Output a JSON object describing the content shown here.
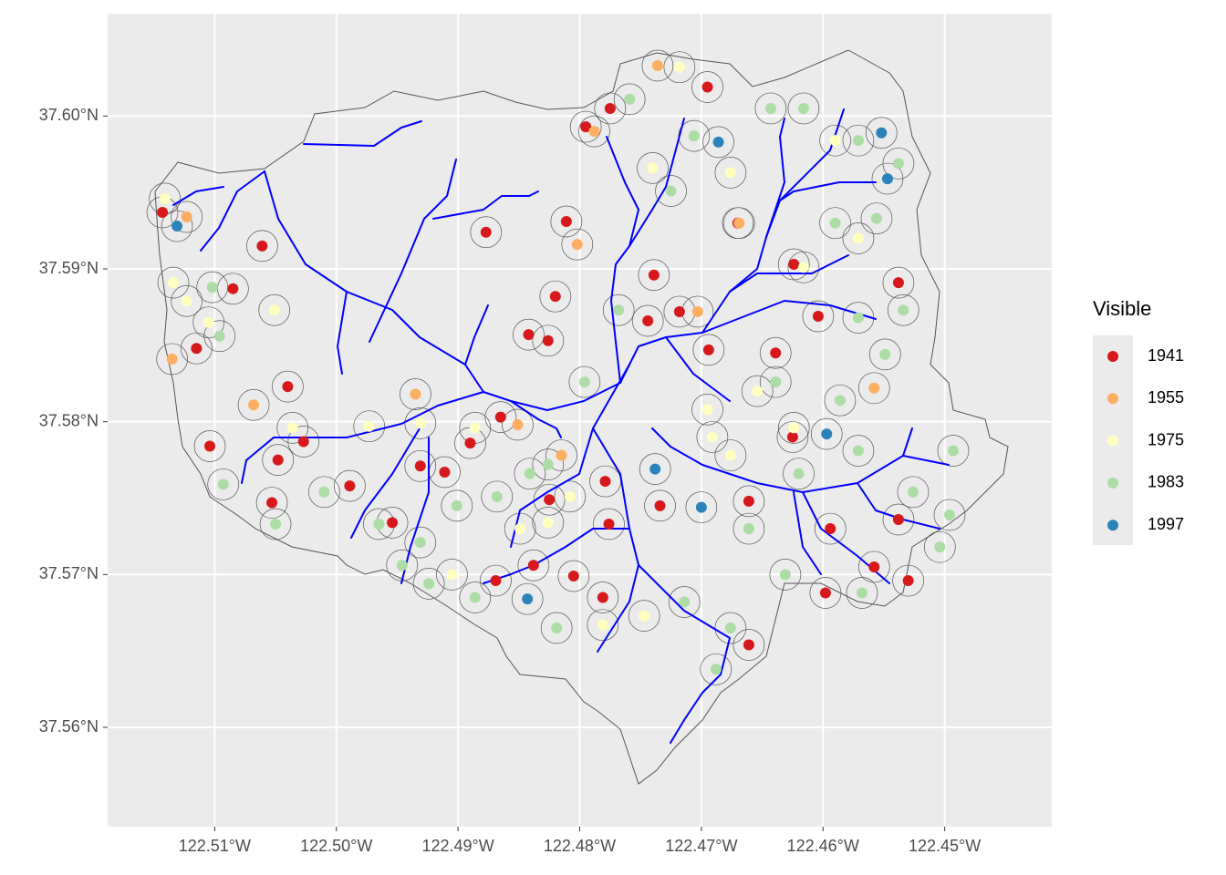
{
  "chart_data": {
    "type": "map",
    "legend_title": "Visible",
    "legend_position": "right",
    "grid": true,
    "xlim": [
      -122.5188,
      -122.4412
    ],
    "ylim": [
      37.5535,
      37.6067
    ],
    "xticks": [
      {
        "value": -122.51,
        "label": "122.51°W"
      },
      {
        "value": -122.5,
        "label": "122.50°W"
      },
      {
        "value": -122.49,
        "label": "122.49°W"
      },
      {
        "value": -122.48,
        "label": "122.48°W"
      },
      {
        "value": -122.47,
        "label": "122.47°W"
      },
      {
        "value": -122.46,
        "label": "122.46°W"
      },
      {
        "value": -122.45,
        "label": "122.45°W"
      }
    ],
    "yticks": [
      {
        "value": 37.56,
        "label": "37.56°N"
      },
      {
        "value": 37.57,
        "label": "37.57°N"
      },
      {
        "value": 37.58,
        "label": "37.58°N"
      },
      {
        "value": 37.59,
        "label": "37.59°N"
      },
      {
        "value": 37.6,
        "label": "37.60°N"
      }
    ],
    "series": [
      {
        "name": "1941",
        "color": "#d7191c",
        "x": [
          -122.5143,
          -122.5115,
          -122.5104,
          -122.5085,
          -122.5061,
          -122.504,
          -122.5027,
          -122.5048,
          -122.5053,
          -122.4989,
          -122.4954,
          -122.4931,
          -122.4911,
          -122.489,
          -122.4865,
          -122.4877,
          -122.4842,
          -122.4826,
          -122.4811,
          -122.4795,
          -122.4775,
          -122.482,
          -122.4739,
          -122.4718,
          -122.4695,
          -122.467,
          -122.4694,
          -122.4624,
          -122.4604,
          -122.4639,
          -122.4538,
          -122.4538,
          -122.453,
          -122.4594,
          -122.4598,
          -122.4661,
          -122.4734,
          -122.4779,
          -122.4776,
          -122.4781,
          -122.4805,
          -122.4869,
          -122.4825,
          -122.4838,
          -122.4661,
          -122.4744,
          -122.4625,
          -122.4558
        ],
        "y": [
          37.5937,
          37.5848,
          37.5784,
          37.5887,
          37.5915,
          37.5823,
          37.5787,
          37.5775,
          37.5747,
          37.5758,
          37.5734,
          37.5771,
          37.5767,
          37.5786,
          37.5803,
          37.5924,
          37.5857,
          37.5853,
          37.5931,
          37.5993,
          37.6005,
          37.5882,
          37.5896,
          37.5872,
          37.6019,
          37.593,
          37.5847,
          37.5903,
          37.5869,
          37.5845,
          37.5891,
          37.5736,
          37.5696,
          37.573,
          37.5688,
          37.5748,
          37.5745,
          37.5761,
          37.5733,
          37.5685,
          37.5699,
          37.5696,
          37.5749,
          37.5706,
          37.5654,
          37.5866,
          37.579,
          37.5705
        ]
      },
      {
        "name": "1955",
        "color": "#fdae61",
        "x": [
          -122.5123,
          -122.5135,
          -122.5068,
          -122.4935,
          -122.4851,
          -122.4788,
          -122.4736,
          -122.4703,
          -122.4558,
          -122.4802,
          -122.4815,
          -122.4669
        ],
        "y": [
          37.5934,
          37.5841,
          37.5811,
          37.5818,
          37.5798,
          37.599,
          37.6033,
          37.5872,
          37.5822,
          37.5916,
          37.5778,
          37.593
        ]
      },
      {
        "name": "1975",
        "color": "#ffffbf",
        "x": [
          -122.5141,
          -122.5134,
          -122.5123,
          -122.5105,
          -122.5051,
          -122.5036,
          -122.4973,
          -122.4931,
          -122.4886,
          -122.4826,
          -122.4808,
          -122.4781,
          -122.4718,
          -122.474,
          -122.4676,
          -122.459,
          -122.4616,
          -122.4691,
          -122.4676,
          -122.4695,
          -122.4654,
          -122.4624,
          -122.4905,
          -122.4849,
          -122.4747,
          -122.4571
        ],
        "y": [
          37.5946,
          37.5891,
          37.5879,
          37.5865,
          37.5873,
          37.5796,
          37.5797,
          37.5799,
          37.5796,
          37.5734,
          37.5751,
          37.5667,
          37.6032,
          37.5966,
          37.5963,
          37.5984,
          37.5901,
          37.579,
          37.5778,
          37.5808,
          37.582,
          37.5796,
          37.57,
          37.573,
          37.5673,
          37.592
        ]
      },
      {
        "name": "1983",
        "color": "#abdda4",
        "x": [
          -122.5102,
          -122.5096,
          -122.5093,
          -122.505,
          -122.501,
          -122.4965,
          -122.4946,
          -122.4901,
          -122.4868,
          -122.4841,
          -122.4826,
          -122.4796,
          -122.4768,
          -122.4759,
          -122.4725,
          -122.4706,
          -122.4643,
          -122.4616,
          -122.4571,
          -122.4538,
          -122.459,
          -122.4556,
          -122.4571,
          -122.4549,
          -122.4534,
          -122.4586,
          -122.4571,
          -122.4526,
          -122.4493,
          -122.4504,
          -122.4496,
          -122.4568,
          -122.4631,
          -122.4676,
          -122.4688,
          -122.4661,
          -122.4714,
          -122.4819,
          -122.4886,
          -122.4924,
          -122.4931,
          -122.462,
          -122.4639
        ],
        "y": [
          37.5888,
          37.5856,
          37.5759,
          37.5733,
          37.5754,
          37.5733,
          37.5706,
          37.5745,
          37.5751,
          37.5766,
          37.5772,
          37.5826,
          37.5873,
          37.6011,
          37.5951,
          37.5987,
          37.6005,
          37.6005,
          37.5984,
          37.5969,
          37.593,
          37.5933,
          37.5868,
          37.5844,
          37.5873,
          37.5814,
          37.5781,
          37.5754,
          37.5781,
          37.5718,
          37.5739,
          37.5688,
          37.57,
          37.5665,
          37.5638,
          37.573,
          37.5682,
          37.5665,
          37.5685,
          37.5694,
          37.5721,
          37.5766,
          37.5826
        ]
      },
      {
        "name": "1997",
        "color": "#2b83ba",
        "x": [
          -122.5131,
          -122.4686,
          -122.4552,
          -122.4547,
          -122.4597,
          -122.4738,
          -122.47,
          -122.4843
        ],
        "y": [
          37.5928,
          37.5983,
          37.5989,
          37.5959,
          37.5792,
          37.5769,
          37.5744,
          37.5684
        ]
      }
    ]
  }
}
